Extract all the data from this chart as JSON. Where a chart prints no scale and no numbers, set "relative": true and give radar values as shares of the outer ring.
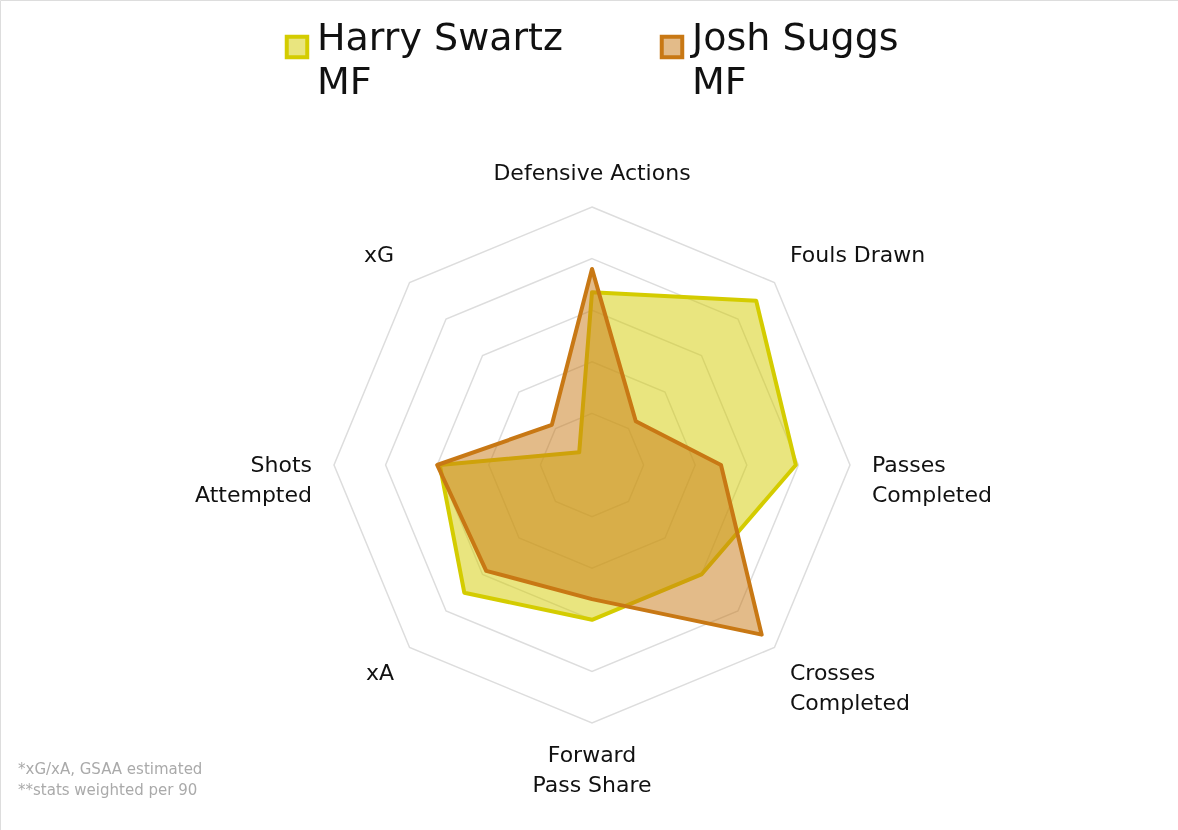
{
  "chart_data": {
    "type": "radar",
    "relative": true,
    "grid": true,
    "legend": "top",
    "categories": [
      "Defensive Actions",
      "Fouls Drawn",
      "Passes\nCompleted",
      "Crosses\nCompleted",
      "Forward\nPass Share",
      "xA",
      "Shots\nAttempted",
      "xG"
    ],
    "series": [
      {
        "name": "Harry Swartz\nMF",
        "color": "#d4cc00",
        "values": [
          0.67,
          0.9,
          0.79,
          0.6,
          0.6,
          0.7,
          0.59,
          0.07
        ]
      },
      {
        "name": "Josh Suggs\nMF",
        "color": "#c87814",
        "values": [
          0.76,
          0.24,
          0.5,
          0.93,
          0.52,
          0.58,
          0.6,
          0.22
        ]
      }
    ],
    "annotations": [
      "*xG/xA, GSAA estimated",
      "**stats weighted per 90"
    ]
  }
}
